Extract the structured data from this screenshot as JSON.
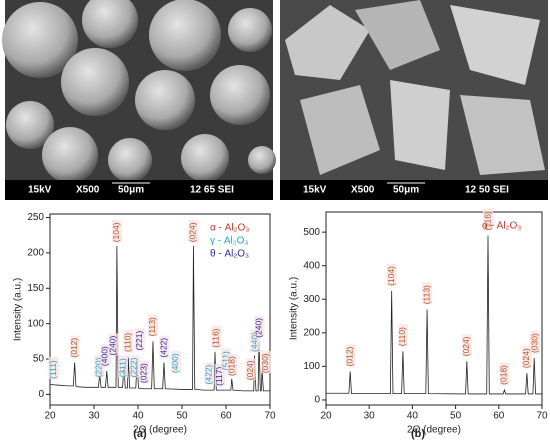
{
  "panels": [
    {
      "label": "(a)",
      "bar": [
        "15kV",
        "X500",
        "50μm",
        "12 65 SEI"
      ]
    },
    {
      "label": "(b)",
      "bar": [
        "15kV",
        "X500",
        "50μm",
        "12 50 SEI"
      ]
    }
  ],
  "chart_data": [
    {
      "type": "line",
      "xlabel": "2Θ (degree)",
      "ylabel": "Intensity (a.u.)",
      "xlim": [
        20,
        70
      ],
      "xticks": [
        20,
        30,
        40,
        50,
        60,
        70
      ],
      "ylim": [
        -15,
        255
      ],
      "yticks": [
        0,
        50,
        100,
        150,
        200,
        250
      ],
      "notes": [
        {
          "text": "α - Al₂O₃",
          "color": "#c0392b"
        },
        {
          "text": "γ - Al₂O₃",
          "color": "#1fa9c4"
        },
        {
          "text": "θ - Al₂O₃",
          "color": "#2a2aa8"
        }
      ],
      "series": [
        {
          "color": "#222222",
          "x": [
            20,
            22,
            24,
            25.3,
            25.6,
            25.9,
            28,
            31,
            31.3,
            31.6,
            32.6,
            32.9,
            33.2,
            35,
            35.2,
            35.5,
            36.5,
            36.8,
            37.1,
            37.6,
            37.8,
            38.1,
            39.5,
            39.8,
            40.1,
            41,
            43.1,
            43.4,
            43.7,
            45.6,
            45.9,
            46.2,
            50,
            52.4,
            52.6,
            52.9,
            55,
            57.3,
            57.5,
            57.8,
            59,
            61.1,
            61.3,
            61.6,
            64,
            66.3,
            66.5,
            66.8,
            67.3,
            67.5,
            67.8,
            68,
            68.2,
            68.5,
            70
          ],
          "values": [
            14,
            13,
            12,
            12,
            45,
            11,
            10,
            10,
            28,
            10,
            10,
            33,
            10,
            10,
            210,
            10,
            10,
            40,
            9,
            9,
            52,
            9,
            9,
            48,
            9,
            8,
            8,
            75,
            8,
            8,
            45,
            8,
            7,
            7,
            210,
            7,
            6,
            6,
            60,
            6,
            6,
            6,
            22,
            6,
            5,
            5,
            55,
            5,
            5,
            75,
            5,
            5,
            35,
            5,
            5
          ]
        }
      ],
      "annotations": [
        {
          "text": "(111)",
          "x": 20.8,
          "y": 22,
          "color": "#1fa9c4"
        },
        {
          "text": "(012)",
          "x": 25.6,
          "y": 52,
          "color": "#b5561c"
        },
        {
          "text": "(220)",
          "x": 31.2,
          "y": 24,
          "color": "#1fa9c4"
        },
        {
          "text": "(400)",
          "x": 32.6,
          "y": 40,
          "color": "#2a2aa8"
        },
        {
          "text": "(240)",
          "x": 34.4,
          "y": 55,
          "color": "#2a2aa8"
        },
        {
          "text": "(104)",
          "x": 35.2,
          "y": 215,
          "color": "#b5561c"
        },
        {
          "text": "(311)",
          "x": 36.6,
          "y": 24,
          "color": "#1fa9c4"
        },
        {
          "text": "(110)",
          "x": 37.8,
          "y": 60,
          "color": "#b5561c"
        },
        {
          "text": "(222)",
          "x": 39.2,
          "y": 24,
          "color": "#1fa9c4"
        },
        {
          "text": "(221)",
          "x": 40.4,
          "y": 62,
          "color": "#2a2aa8"
        },
        {
          "text": "(023)",
          "x": 41.4,
          "y": 16,
          "color": "#2a2aa8"
        },
        {
          "text": "(113)",
          "x": 43.4,
          "y": 82,
          "color": "#b5561c"
        },
        {
          "text": "(422)",
          "x": 46.0,
          "y": 52,
          "color": "#2a2aa8"
        },
        {
          "text": "(400)",
          "x": 48.6,
          "y": 30,
          "color": "#1fa9c4"
        },
        {
          "text": "(024)",
          "x": 52.6,
          "y": 215,
          "color": "#b5561c"
        },
        {
          "text": "(422)",
          "x": 56.2,
          "y": 14,
          "color": "#1fa9c4"
        },
        {
          "text": "(116)",
          "x": 57.8,
          "y": 66,
          "color": "#b5561c"
        },
        {
          "text": "(117)",
          "x": 58.6,
          "y": 12,
          "color": "#2a2aa8"
        },
        {
          "text": "(511)",
          "x": 60.0,
          "y": 34,
          "color": "#1fa9c4"
        },
        {
          "text": "(018)",
          "x": 61.4,
          "y": 26,
          "color": "#b5561c"
        },
        {
          "text": "(024)",
          "x": 65.6,
          "y": 20,
          "color": "#b5561c"
        },
        {
          "text": "(440)",
          "x": 66.6,
          "y": 60,
          "color": "#1fa9c4"
        },
        {
          "text": "(240)",
          "x": 67.6,
          "y": 80,
          "color": "#2a2aa8"
        },
        {
          "text": "(030)",
          "x": 69.0,
          "y": 30,
          "color": "#b5561c"
        }
      ]
    },
    {
      "type": "line",
      "xlabel": "2Θ (degree)",
      "ylabel": "Intensity (a.u.)",
      "xlim": [
        20,
        70
      ],
      "xticks": [
        20,
        30,
        40,
        50,
        60,
        70
      ],
      "ylim": [
        -15,
        560
      ],
      "yticks": [
        0,
        100,
        200,
        300,
        400,
        500
      ],
      "notes": [
        {
          "text": "α - Al₂O₃",
          "color": "#c0392b"
        }
      ],
      "series": [
        {
          "color": "#222222",
          "x": [
            20,
            23,
            25.3,
            25.6,
            25.9,
            30,
            34.9,
            35.2,
            35.5,
            37.5,
            37.8,
            38.1,
            43.1,
            43.4,
            43.7,
            52.3,
            52.6,
            52.9,
            57.2,
            57.5,
            57.8,
            61.0,
            61.3,
            61.6,
            66.2,
            66.5,
            66.8,
            67.9,
            68.2,
            68.5,
            70
          ],
          "values": [
            20,
            20,
            20,
            85,
            19,
            19,
            19,
            325,
            19,
            19,
            145,
            19,
            19,
            270,
            19,
            18,
            115,
            18,
            18,
            490,
            18,
            18,
            30,
            18,
            18,
            80,
            18,
            18,
            125,
            18,
            18
          ]
        }
      ],
      "annotations": [
        {
          "text": "(012)",
          "x": 25.6,
          "y": 100,
          "color": "#b5561c"
        },
        {
          "text": "(104)",
          "x": 35.2,
          "y": 340,
          "color": "#b5561c"
        },
        {
          "text": "(110)",
          "x": 37.8,
          "y": 160,
          "color": "#b5561c"
        },
        {
          "text": "(113)",
          "x": 43.4,
          "y": 285,
          "color": "#b5561c"
        },
        {
          "text": "(024)",
          "x": 52.6,
          "y": 130,
          "color": "#b5561c"
        },
        {
          "text": "(116)",
          "x": 57.5,
          "y": 505,
          "color": "#b5561c"
        },
        {
          "text": "(018)",
          "x": 61.3,
          "y": 45,
          "color": "#b5561c"
        },
        {
          "text": "(024)",
          "x": 66.5,
          "y": 95,
          "color": "#b5561c"
        },
        {
          "text": "(030)",
          "x": 68.4,
          "y": 140,
          "color": "#b5561c"
        }
      ]
    }
  ]
}
